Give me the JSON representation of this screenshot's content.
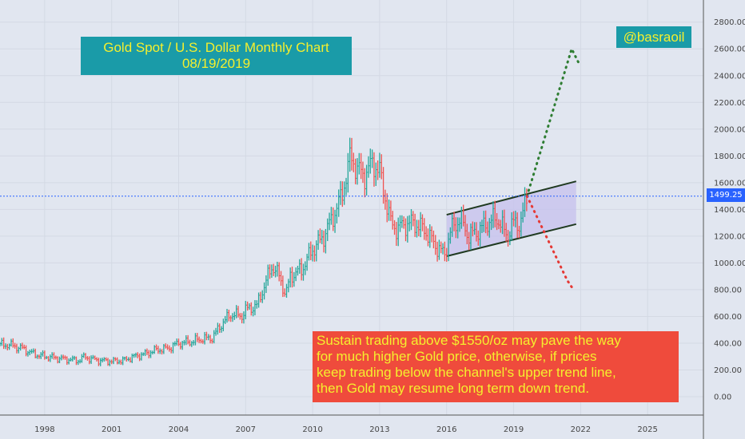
{
  "title": {
    "line1": "Gold Spot / U.S. Dollar Monthly Chart",
    "line2": "08/19/2019"
  },
  "handle": "@basraoil",
  "note": "Sustain trading above $1550/oz may pave the way\nfor much higher Gold price, otherwise, if prices\nkeep trading below the channel's upper trend line,\nthen Gold may resume long term down trend.",
  "current_price_label": "1499.25",
  "colors": {
    "background": "#e1e6f0",
    "up": "#26a69a",
    "down": "#ef5350",
    "channel_fill": "#c5c0ee",
    "bullish_path": "#2e7d32",
    "bearish_path": "#e53935",
    "price_line": "#2962ff",
    "box_teal": "#1a9ba8",
    "box_red": "#ef4b3c",
    "box_text": "#f5ef2e"
  },
  "chart_data": {
    "type": "line",
    "title": "Gold Spot / U.S. Dollar Monthly Chart",
    "subtitle": "08/19/2019",
    "x_ticks": [
      "1998",
      "2001",
      "2004",
      "2007",
      "2010",
      "2013",
      "2016",
      "2019",
      "2022",
      "2025"
    ],
    "y_ticks": [
      "0.00",
      "200.00",
      "400.00",
      "600.00",
      "800.00",
      "1000.00",
      "1200.00",
      "1400.00",
      "1600.00",
      "1800.00",
      "2000.00",
      "2200.00",
      "2400.00",
      "2600.00",
      "2800.00"
    ],
    "ylim": [
      -50,
      2850
    ],
    "xlim": [
      1996.0,
      2027.5
    ],
    "current_price": 1499.25,
    "grid": true,
    "series": [
      {
        "name": "",
        "x": [
          1996.0,
          1996.5,
          1997.0,
          1997.5,
          1998.0,
          1998.5,
          1999.0,
          1999.5,
          1999.8,
          2000.0,
          2000.5,
          2001.0,
          2001.5,
          2002.0,
          2002.5,
          2003.0,
          2003.5,
          2004.0,
          2004.5,
          2005.0,
          2005.5,
          2006.0,
          2006.4,
          2006.8,
          2007.0,
          2007.5,
          2008.0,
          2008.2,
          2008.5,
          2008.8,
          2009.0,
          2009.5,
          2010.0,
          2010.5,
          2011.0,
          2011.3,
          2011.7,
          2012.0,
          2012.3,
          2012.7,
          2013.0,
          2013.3,
          2013.5,
          2013.8,
          2014.0,
          2014.5,
          2015.0,
          2015.5,
          2015.9,
          2016.2,
          2016.6,
          2017.0,
          2017.5,
          2018.0,
          2018.3,
          2018.7,
          2019.0,
          2019.3,
          2019.6
        ],
        "values": [
          390,
          385,
          360,
          320,
          300,
          290,
          280,
          270,
          300,
          285,
          270,
          265,
          270,
          300,
          320,
          350,
          360,
          400,
          410,
          430,
          440,
          560,
          620,
          600,
          650,
          680,
          900,
          980,
          900,
          760,
          900,
          950,
          1100,
          1200,
          1380,
          1500,
          1800,
          1700,
          1650,
          1750,
          1680,
          1450,
          1300,
          1250,
          1280,
          1300,
          1250,
          1130,
          1060,
          1250,
          1330,
          1200,
          1250,
          1320,
          1330,
          1200,
          1300,
          1290,
          1500
        ]
      }
    ],
    "channel": {
      "lower": {
        "x": [
          2016.0,
          2021.8
        ],
        "y": [
          1050,
          1290
        ]
      },
      "upper": {
        "x": [
          2016.0,
          2021.8
        ],
        "y": [
          1360,
          1610
        ]
      }
    },
    "annotations": {
      "bullish_target": {
        "x": [
          2019.6,
          2021.6,
          2021.9
        ],
        "y": [
          1500,
          2600,
          2500
        ]
      },
      "bearish_target": {
        "x": [
          2019.6,
          2021.4,
          2021.6
        ],
        "y": [
          1500,
          870,
          820
        ]
      }
    }
  }
}
